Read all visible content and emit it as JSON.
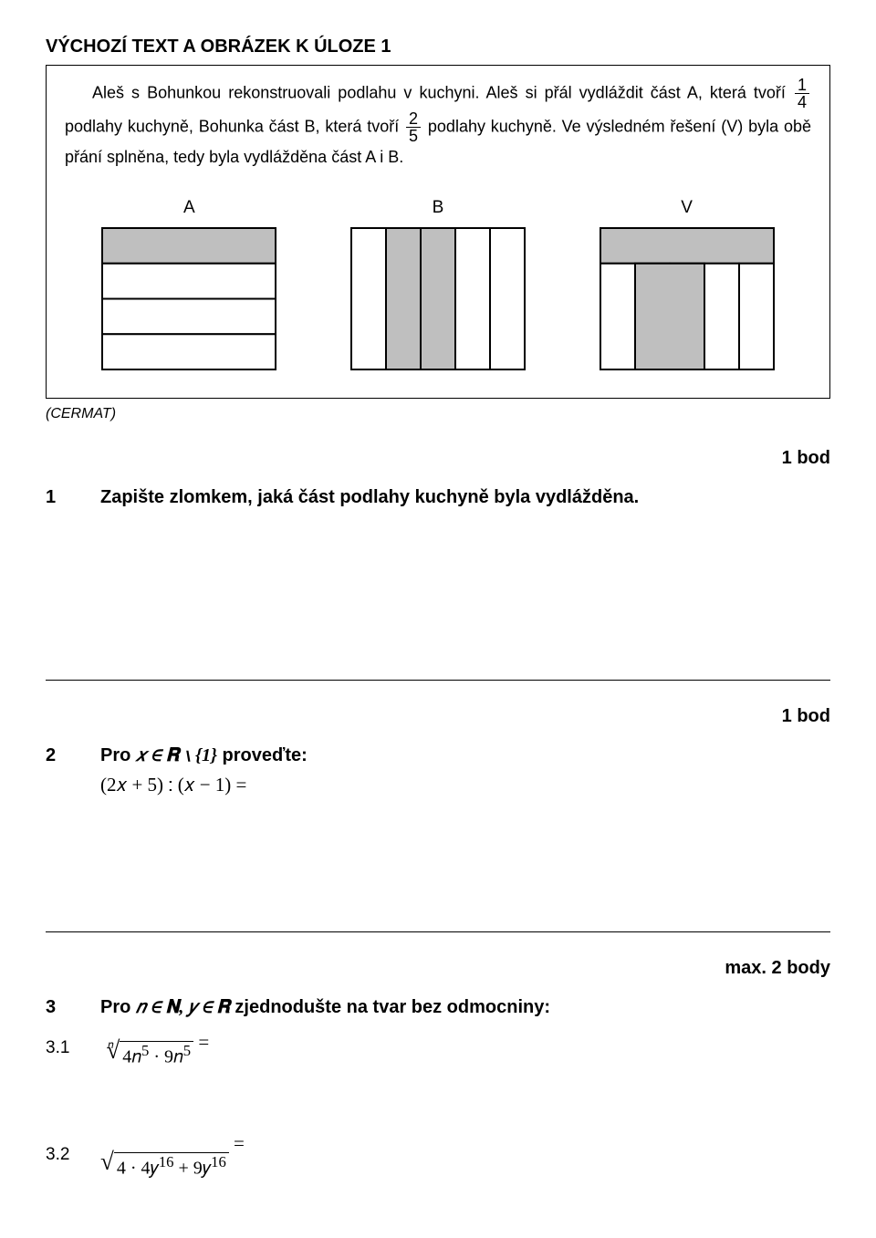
{
  "heading": "VÝCHOZÍ TEXT A OBRÁZEK K ÚLOZE 1",
  "reading": {
    "p1_intro": "Aleš s Bohunkou rekonstruovali podlahu v kuchyni. Aleš si přál vydláždit část A, která tvoří ",
    "frac1_num": "1",
    "frac1_den": "4",
    "p1_mid": " podlahy kuchyně, Bohunka část B, která tvoří ",
    "frac2_num": "2",
    "frac2_den": "5",
    "p1_end": " podlahy kuchyně. Ve výsledném řešení (V) byla obě přání splněna, tedy byla vydlážděna část A i B."
  },
  "diagrams": {
    "A": {
      "label": "A",
      "type": "horizontal-strips",
      "outer_w": 190,
      "outer_h": 155,
      "fill_color": "#bfbfbf",
      "stroke": "#000000",
      "stroke_w": 2,
      "rows": 4,
      "filled_rows": [
        0
      ]
    },
    "B": {
      "label": "B",
      "type": "vertical-strips",
      "outer_w": 190,
      "outer_h": 155,
      "fill_color": "#bfbfbf",
      "stroke": "#000000",
      "stroke_w": 2,
      "cols": 5,
      "filled_cols": [
        1,
        2
      ]
    },
    "V": {
      "label": "V",
      "type": "union",
      "outer_w": 190,
      "outer_h": 155,
      "fill_color": "#bfbfbf",
      "stroke": "#000000",
      "stroke_w": 2,
      "rows": 4,
      "cols": 5,
      "top_filled_rows": 1,
      "filled_cols": [
        1,
        2
      ]
    }
  },
  "source_note": "(CERMAT)",
  "points": {
    "t1": "1 bod",
    "t2": "1 bod",
    "t3": "max. 2 body"
  },
  "task1": {
    "num": "1",
    "text": "Zapište zlomkem, jaká část podlahy kuchyně byla vydlážděna."
  },
  "task2": {
    "num": "2",
    "text_prefix": "Pro ",
    "math_cond": "𝑥 ∈ 𝐑 ∖ {1}",
    "text_suffix": " proveďte:",
    "formula": "(2𝑥 + 5) ∶ (𝑥 − 1)  ="
  },
  "task3": {
    "num": "3",
    "text_prefix": "Pro  ",
    "math_cond": "𝑛 ∈ 𝐍,  𝑦 ∈ 𝐑",
    "text_suffix": "  zjednodušte na tvar bez odmocniny:",
    "sub1": {
      "num": "3.1",
      "root_index": "𝑛",
      "radicand_html": "4𝑛<sup>5</sup> · 9𝑛<sup>5</sup>",
      "tail": "  ="
    },
    "sub2": {
      "num": "3.2",
      "root_index": "",
      "radicand_html": "4 · 4𝑦<sup>16</sup> + 9𝑦<sup>16</sup>",
      "tail": "  ="
    }
  }
}
